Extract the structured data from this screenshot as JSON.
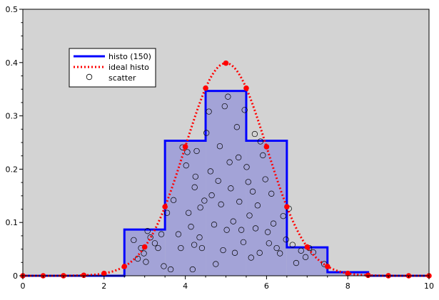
{
  "chart_data": {
    "type": "line",
    "xlim": [
      0,
      10
    ],
    "ylim": [
      0,
      0.5
    ],
    "x_ticks": [
      0,
      2,
      4,
      6,
      8,
      10
    ],
    "y_ticks": [
      0,
      0.1,
      0.2,
      0.3,
      0.4,
      0.5
    ],
    "x_tick_labels": [
      "0",
      "2",
      "4",
      "6",
      "8",
      "10"
    ],
    "y_tick_labels": [
      "0",
      "0.1",
      "0.2",
      "0.3",
      "0.4",
      "0.5"
    ],
    "background": "#d3d3d3",
    "grid": false,
    "legend": {
      "placement": "upper-left",
      "entries": [
        {
          "label": "histo (150)",
          "style": "solid-line",
          "color": "#0000ff"
        },
        {
          "label": "ideal histo",
          "style": "dotted-line",
          "color": "#ff0000"
        },
        {
          "label": "scatter",
          "style": "open-circle",
          "color": "#000000"
        }
      ]
    },
    "series": [
      {
        "name": "histo (150)",
        "type": "step-histogram",
        "color": "#0000ff",
        "fill": "#a3a3d7",
        "bins": [
          {
            "x0": 2.5,
            "x1": 3.5,
            "value": 0.0867
          },
          {
            "x0": 3.5,
            "x1": 4.5,
            "value": 0.2533
          },
          {
            "x0": 4.5,
            "x1": 5.5,
            "value": 0.3467
          },
          {
            "x0": 5.5,
            "x1": 6.5,
            "value": 0.2533
          },
          {
            "x0": 6.5,
            "x1": 7.5,
            "value": 0.0533
          },
          {
            "x0": 7.5,
            "x1": 8.5,
            "value": 0.0067
          }
        ]
      },
      {
        "name": "ideal histo",
        "type": "dotted-curve",
        "color": "#ff0000",
        "mean": 5,
        "sigma": 1,
        "points": [
          [
            0,
            0.0
          ],
          [
            0.5,
            0.0
          ],
          [
            1,
            0.0001
          ],
          [
            1.5,
            0.0009
          ],
          [
            2,
            0.0044
          ],
          [
            2.5,
            0.0175
          ],
          [
            3,
            0.054
          ],
          [
            3.5,
            0.1295
          ],
          [
            4,
            0.242
          ],
          [
            4.5,
            0.3521
          ],
          [
            5,
            0.3989
          ],
          [
            5.5,
            0.3521
          ],
          [
            6,
            0.242
          ],
          [
            6.5,
            0.1295
          ],
          [
            7,
            0.054
          ],
          [
            7.5,
            0.0175
          ],
          [
            8,
            0.0044
          ],
          [
            8.5,
            0.0009
          ],
          [
            9,
            0.0001
          ],
          [
            9.5,
            0.0
          ],
          [
            10,
            0.0
          ]
        ]
      },
      {
        "name": "scatter",
        "type": "scatter",
        "marker": "open-circle",
        "color": "#000000",
        "points": [
          [
            2.73,
            0.067
          ],
          [
            2.83,
            0.032
          ],
          [
            2.91,
            0.052
          ],
          [
            2.98,
            0.042
          ],
          [
            3.03,
            0.026
          ],
          [
            3.07,
            0.084
          ],
          [
            3.14,
            0.072
          ],
          [
            3.25,
            0.061
          ],
          [
            3.33,
            0.052
          ],
          [
            3.41,
            0.078
          ],
          [
            3.47,
            0.018
          ],
          [
            3.55,
            0.118
          ],
          [
            3.64,
            0.012
          ],
          [
            3.71,
            0.142
          ],
          [
            3.83,
            0.078
          ],
          [
            3.89,
            0.052
          ],
          [
            3.93,
            0.241
          ],
          [
            4.02,
            0.207
          ],
          [
            4.05,
            0.232
          ],
          [
            4.08,
            0.118
          ],
          [
            4.14,
            0.092
          ],
          [
            4.18,
            0.012
          ],
          [
            4.22,
            0.058
          ],
          [
            4.23,
            0.166
          ],
          [
            4.25,
            0.186
          ],
          [
            4.28,
            0.234
          ],
          [
            4.35,
            0.072
          ],
          [
            4.37,
            0.128
          ],
          [
            4.41,
            0.052
          ],
          [
            4.47,
            0.141
          ],
          [
            4.52,
            0.268
          ],
          [
            4.58,
            0.308
          ],
          [
            4.62,
            0.196
          ],
          [
            4.65,
            0.151
          ],
          [
            4.71,
            0.096
          ],
          [
            4.75,
            0.022
          ],
          [
            4.81,
            0.178
          ],
          [
            4.85,
            0.243
          ],
          [
            4.88,
            0.134
          ],
          [
            4.93,
            0.048
          ],
          [
            4.97,
            0.318
          ],
          [
            5.02,
            0.086
          ],
          [
            5.05,
            0.336
          ],
          [
            5.09,
            0.213
          ],
          [
            5.12,
            0.164
          ],
          [
            5.18,
            0.102
          ],
          [
            5.22,
            0.043
          ],
          [
            5.27,
            0.279
          ],
          [
            5.31,
            0.222
          ],
          [
            5.33,
            0.139
          ],
          [
            5.38,
            0.086
          ],
          [
            5.43,
            0.063
          ],
          [
            5.46,
            0.311
          ],
          [
            5.51,
            0.204
          ],
          [
            5.55,
            0.176
          ],
          [
            5.58,
            0.113
          ],
          [
            5.62,
            0.034
          ],
          [
            5.66,
            0.158
          ],
          [
            5.71,
            0.266
          ],
          [
            5.73,
            0.089
          ],
          [
            5.78,
            0.132
          ],
          [
            5.83,
            0.043
          ],
          [
            5.85,
            0.252
          ],
          [
            5.91,
            0.226
          ],
          [
            5.97,
            0.181
          ],
          [
            6.03,
            0.082
          ],
          [
            6.06,
            0.061
          ],
          [
            6.12,
            0.154
          ],
          [
            6.17,
            0.098
          ],
          [
            6.25,
            0.052
          ],
          [
            6.33,
            0.042
          ],
          [
            6.41,
            0.112
          ],
          [
            6.48,
            0.068
          ],
          [
            6.55,
            0.126
          ],
          [
            6.64,
            0.058
          ],
          [
            6.73,
            0.024
          ],
          [
            6.85,
            0.047
          ],
          [
            6.96,
            0.035
          ],
          [
            7.05,
            0.052
          ],
          [
            7.15,
            0.044
          ],
          [
            7.42,
            0.022
          ]
        ]
      }
    ]
  }
}
